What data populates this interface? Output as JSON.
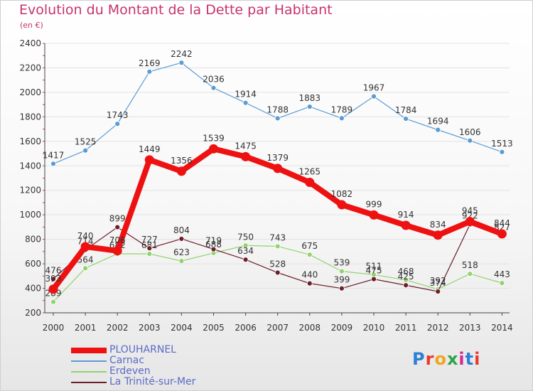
{
  "title": "Evolution du Montant de la Dette par Habitant",
  "subtitle": "(en €)",
  "logo": {
    "text": "Proxiti",
    "colors": [
      "#2e7fd6",
      "#e8392e",
      "#f2a421",
      "#2fa24a",
      "#d6298f",
      "#2e7fd6",
      "#e8392e"
    ]
  },
  "chart_data": {
    "type": "line",
    "x": [
      "2000",
      "2001",
      "2002",
      "2003",
      "2004",
      "2005",
      "2006",
      "2007",
      "2008",
      "2009",
      "2010",
      "2011",
      "2012",
      "2013",
      "2014"
    ],
    "ylim": [
      200,
      2400
    ],
    "yticks": [
      200,
      400,
      600,
      800,
      1000,
      1200,
      1400,
      1600,
      1800,
      2000,
      2200,
      2400
    ],
    "grid": "horizontal",
    "legend_position": "bottom-left",
    "series": [
      {
        "name": "Carnac",
        "color": "#5b9bd5",
        "values": [
          1417,
          1525,
          1743,
          2169,
          2242,
          2036,
          1914,
          1788,
          1883,
          1789,
          1967,
          1784,
          1694,
          1606,
          1513
        ]
      },
      {
        "name": "Erdeven",
        "color": "#92d36e",
        "values": [
          289,
          564,
          682,
          681,
          623,
          688,
          750,
          743,
          675,
          539,
          511,
          468,
          392,
          518,
          443
        ]
      },
      {
        "name": "La Trinité-sur-Mer",
        "color": "#6b1f2a",
        "values": [
          476,
          714,
          899,
          727,
          804,
          719,
          634,
          528,
          440,
          399,
          475,
          425,
          374,
          922,
          827
        ]
      },
      {
        "name": "PLOUHARNEL",
        "color": "#ee1111",
        "values": [
          393,
          740,
          706,
          1449,
          1356,
          1539,
          1475,
          1379,
          1265,
          1082,
          999,
          914,
          834,
          945,
          844
        ]
      }
    ],
    "legend_order": [
      "PLOUHARNEL",
      "Carnac",
      "Erdeven",
      "La Trinité-sur-Mer"
    ]
  }
}
